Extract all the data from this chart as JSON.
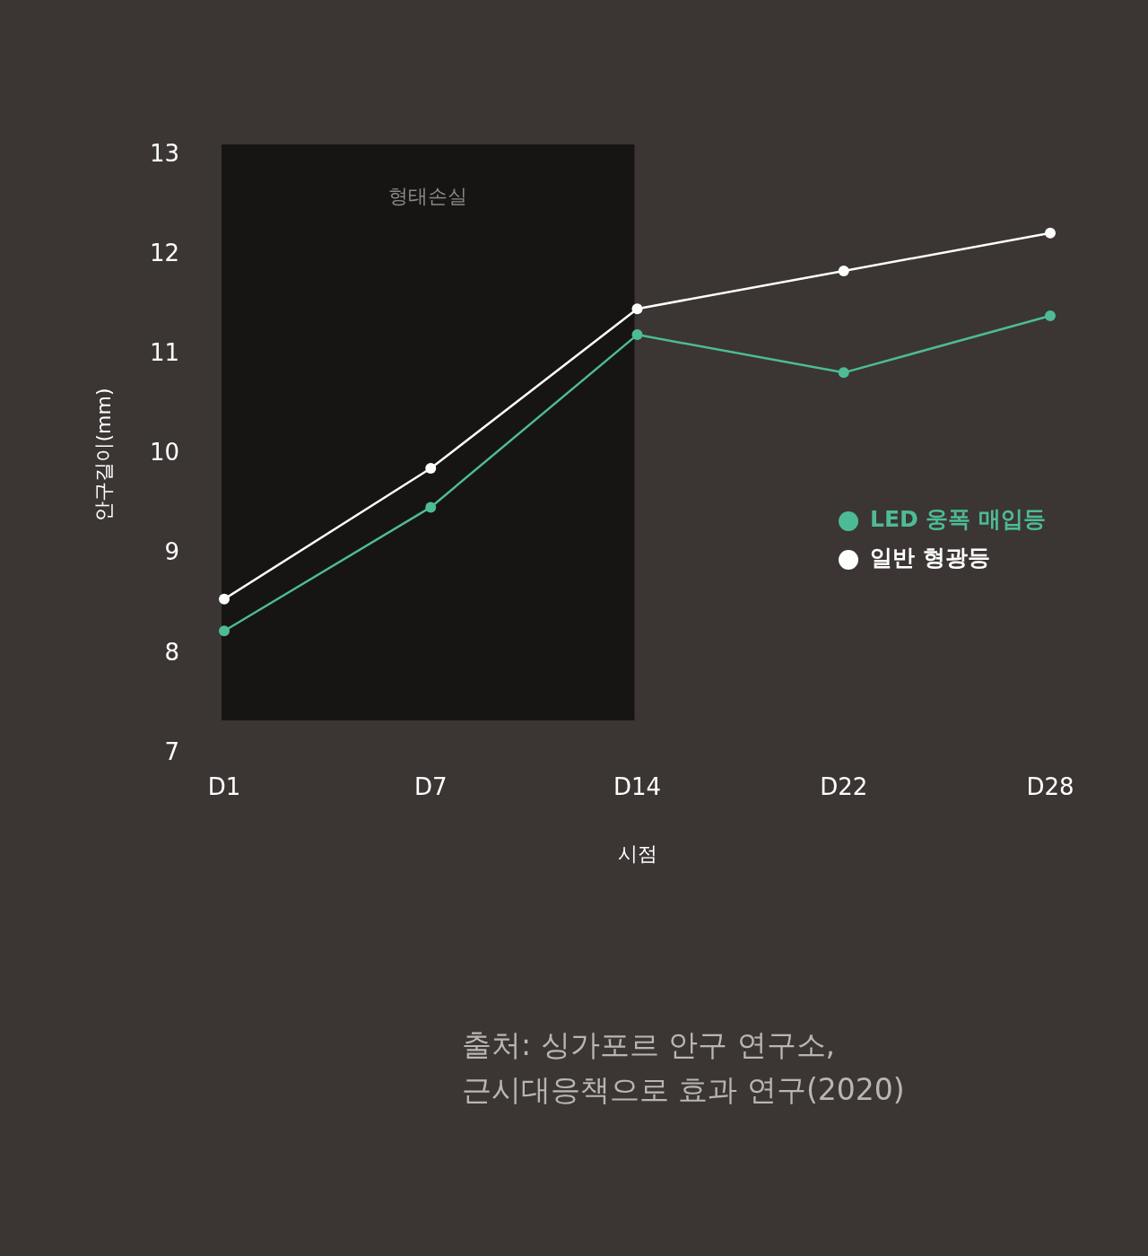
{
  "chart_data": {
    "type": "line",
    "xlabel": "시점",
    "ylabel": "안구길이(mm)",
    "categories": [
      "D1",
      "D7",
      "D14",
      "D22",
      "D28"
    ],
    "series": [
      {
        "name": "LED 웅폭 매입등",
        "color": "#4dbb96",
        "values": [
          8.23,
          9.47,
          11.2,
          10.82,
          11.39
        ]
      },
      {
        "name": "일반 형광등",
        "color": "#ffffff",
        "values": [
          8.55,
          9.86,
          11.46,
          11.84,
          12.22
        ]
      }
    ],
    "ylim": [
      7,
      13
    ],
    "yticks": [
      7,
      8,
      9,
      10,
      11,
      12,
      13
    ],
    "grid": false,
    "legend": "right",
    "marker": "circle",
    "line_style": "solid",
    "bands": [
      {
        "axis": "x",
        "from": "D1",
        "to": "D14",
        "label": "형태손실",
        "color": "#161514"
      }
    ],
    "annotations": [
      "출처: 싱가포르 안구 연구소,\n근시대응책으로 효과 연구(2020)"
    ]
  }
}
